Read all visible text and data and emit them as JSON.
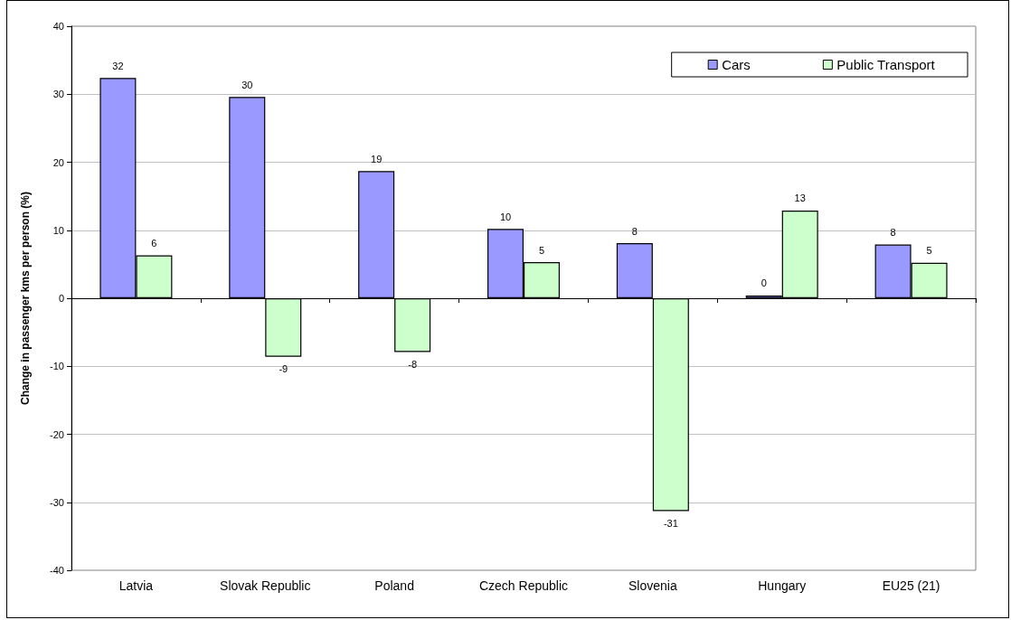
{
  "chart_data": {
    "type": "bar",
    "ylabel": "Change in passenger kms per person (%)",
    "categories": [
      "Latvia",
      "Slovak Republic",
      "Poland",
      "Czech Republic",
      "Slovenia",
      "Hungary",
      "EU25 (21)"
    ],
    "series": [
      {
        "name": "Cars",
        "color": "#9999ff",
        "values": [
          32.4,
          29.6,
          18.7,
          10.2,
          8.1,
          0.4,
          7.9
        ],
        "value_labels": [
          "32",
          "30",
          "19",
          "10",
          "8",
          "0",
          "8"
        ]
      },
      {
        "name": "Public Transport",
        "color": "#ccffcc",
        "values": [
          6.3,
          -8.6,
          -7.9,
          5.3,
          -31.3,
          12.9,
          5.2
        ],
        "value_labels": [
          "6",
          "-9",
          "-8",
          "5",
          "-31",
          "13",
          "5"
        ]
      }
    ],
    "ylim": [
      -40,
      40
    ],
    "yticks": [
      -40,
      -30,
      -20,
      -10,
      0,
      10,
      20,
      30,
      40
    ],
    "grid": "y",
    "legend": "top right"
  }
}
